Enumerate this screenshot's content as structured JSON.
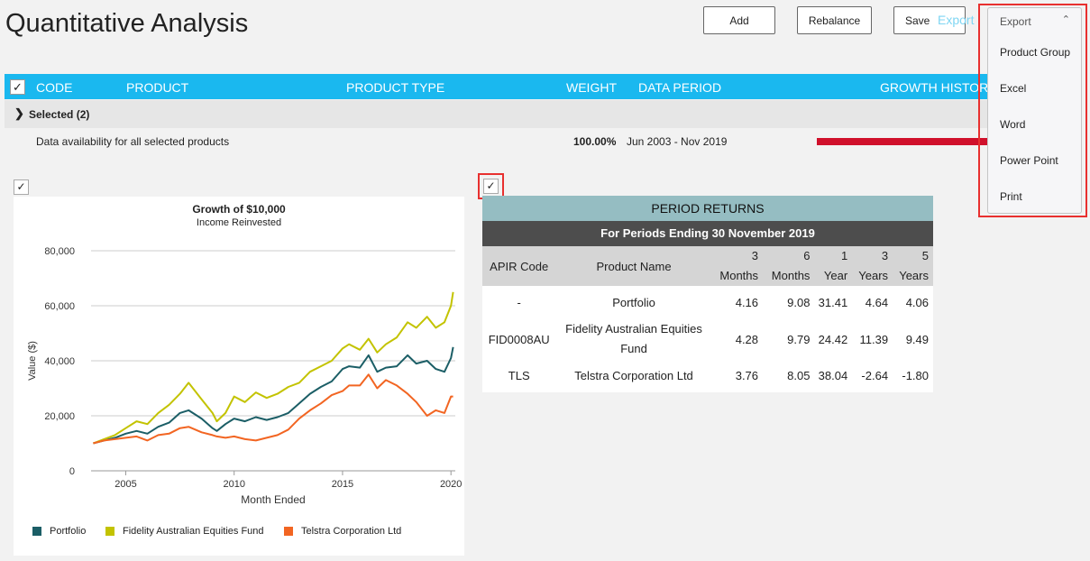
{
  "page_title": "Quantitative Analysis",
  "toolbar": {
    "add": "Add",
    "rebalance": "Rebalance",
    "save": "Save",
    "export_ghost": "Export"
  },
  "table": {
    "check": "✓",
    "headers": {
      "code": "CODE",
      "product": "PRODUCT",
      "product_type": "PRODUCT TYPE",
      "weight": "WEIGHT",
      "data_period": "DATA PERIOD",
      "growth_history": "GROWTH HISTORY"
    },
    "selected_label": "Selected (2)",
    "availability_label": "Data availability for all selected products",
    "availability_pct": "100.00%",
    "availability_period": "Jun 2003 - Nov 2019"
  },
  "export_menu": {
    "header": "Export",
    "items": [
      "Product Group",
      "Excel",
      "Word",
      "Power Point",
      "Print"
    ]
  },
  "chart_checkbox": "✓",
  "chart_data": {
    "type": "line",
    "title": "Growth of $10,000",
    "subtitle": "Income Reinvested",
    "xlabel": "Month Ended",
    "ylabel": "Value ($)",
    "xlim": [
      2003.4,
      2020.2
    ],
    "ylim": [
      0,
      80000
    ],
    "yticks": [
      "80,000",
      "60,000",
      "40,000",
      "20,000",
      "0"
    ],
    "ytick_values": [
      80000,
      60000,
      40000,
      20000,
      0
    ],
    "xticks": [
      "2005",
      "2010",
      "2015",
      "2020"
    ],
    "xtick_values": [
      2005,
      2010,
      2015,
      2020
    ],
    "grid": true,
    "legend_position": "bottom",
    "series": [
      {
        "name": "Portfolio",
        "color": "#1b5e66",
        "x": [
          2003.5,
          2004,
          2004.5,
          2005,
          2005.5,
          2006,
          2006.5,
          2007,
          2007.5,
          2007.9,
          2008.5,
          2009,
          2009.2,
          2009.6,
          2010,
          2010.5,
          2011,
          2011.5,
          2012,
          2012.5,
          2013,
          2013.5,
          2014,
          2014.5,
          2015,
          2015.3,
          2015.8,
          2016.2,
          2016.6,
          2017,
          2017.5,
          2018,
          2018.4,
          2018.9,
          2019.3,
          2019.7,
          2020,
          2020.1
        ],
        "y": [
          10000,
          11000,
          12000,
          13500,
          14500,
          13500,
          16000,
          17500,
          21000,
          22000,
          19000,
          15500,
          14500,
          17000,
          19000,
          18000,
          19500,
          18500,
          19500,
          21000,
          24500,
          28000,
          30500,
          32500,
          37000,
          38000,
          37500,
          42000,
          36000,
          37500,
          38000,
          42000,
          39000,
          40000,
          37000,
          36000,
          41000,
          45000
        ]
      },
      {
        "name": "Fidelity Australian Equities Fund",
        "color": "#c3c300",
        "x": [
          2003.5,
          2004,
          2004.5,
          2005,
          2005.5,
          2006,
          2006.5,
          2007,
          2007.5,
          2007.9,
          2008.5,
          2009,
          2009.2,
          2009.6,
          2010,
          2010.5,
          2011,
          2011.5,
          2012,
          2012.5,
          2013,
          2013.5,
          2014,
          2014.5,
          2015,
          2015.3,
          2015.8,
          2016.2,
          2016.6,
          2017,
          2017.5,
          2018,
          2018.4,
          2018.9,
          2019.3,
          2019.7,
          2020,
          2020.1
        ],
        "y": [
          10000,
          11500,
          13000,
          15500,
          18000,
          17000,
          21000,
          24000,
          28000,
          32000,
          26000,
          21000,
          18000,
          21000,
          27000,
          25000,
          28500,
          26500,
          28000,
          30500,
          32000,
          36000,
          38000,
          40000,
          44500,
          46000,
          44000,
          48000,
          43000,
          46000,
          48500,
          54000,
          52000,
          56000,
          52000,
          54000,
          60000,
          65000
        ]
      },
      {
        "name": "Telstra Corporation Ltd",
        "color": "#f26522",
        "x": [
          2003.5,
          2004,
          2004.5,
          2005,
          2005.5,
          2006,
          2006.5,
          2007,
          2007.5,
          2007.9,
          2008.5,
          2009,
          2009.2,
          2009.6,
          2010,
          2010.5,
          2011,
          2011.5,
          2012,
          2012.5,
          2013,
          2013.5,
          2014,
          2014.5,
          2015,
          2015.3,
          2015.8,
          2016.2,
          2016.6,
          2017,
          2017.5,
          2018,
          2018.4,
          2018.9,
          2019.3,
          2019.7,
          2020,
          2020.1
        ],
        "y": [
          10000,
          11000,
          11500,
          12000,
          12500,
          11000,
          13000,
          13500,
          15500,
          16000,
          14000,
          13000,
          12500,
          12000,
          12500,
          11500,
          11000,
          12000,
          13000,
          15000,
          19000,
          22000,
          24500,
          27500,
          29000,
          31000,
          31000,
          35000,
          30000,
          33000,
          31000,
          28000,
          25000,
          20000,
          22000,
          21000,
          27000,
          27000
        ]
      }
    ]
  },
  "returns_checkbox": "✓",
  "returns": {
    "title": "PERIOD RETURNS",
    "subtitle": "For Periods Ending 30 November 2019",
    "col_apir": "APIR Code",
    "col_product": "Product Name",
    "periods": [
      {
        "n": "3",
        "unit": "Months"
      },
      {
        "n": "6",
        "unit": "Months"
      },
      {
        "n": "1",
        "unit": "Year"
      },
      {
        "n": "3",
        "unit": "Years"
      },
      {
        "n": "5",
        "unit": "Years"
      }
    ],
    "rows": [
      {
        "apir": "-",
        "name": "Portfolio",
        "vals": [
          "4.16",
          "9.08",
          "31.41",
          "4.64",
          "4.06"
        ]
      },
      {
        "apir": "FID0008AU",
        "name": "Fidelity Australian Equities Fund",
        "vals": [
          "4.28",
          "9.79",
          "24.42",
          "11.39",
          "9.49"
        ]
      },
      {
        "apir": "TLS",
        "name": "Telstra Corporation Ltd",
        "vals": [
          "3.76",
          "8.05",
          "38.04",
          "-2.64",
          "-1.80"
        ]
      }
    ]
  }
}
